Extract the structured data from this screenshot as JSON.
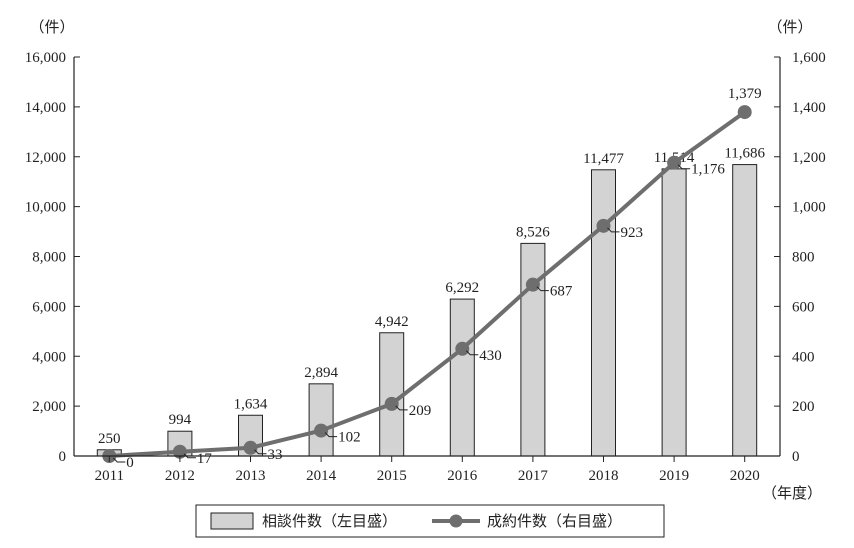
{
  "chart_data": {
    "type": "bar+line",
    "categories": [
      "2011",
      "2012",
      "2013",
      "2014",
      "2015",
      "2016",
      "2017",
      "2018",
      "2019",
      "2020"
    ],
    "series": [
      {
        "name": "相談件数（左目盛）",
        "type": "bar",
        "axis": "left",
        "values": [
          250,
          994,
          1634,
          2894,
          4942,
          6292,
          8526,
          11477,
          11514,
          11686
        ],
        "labels": [
          "250",
          "994",
          "1,634",
          "2,894",
          "4,942",
          "6,292",
          "8,526",
          "11,477",
          "11,514",
          "11,686"
        ],
        "color": "#d3d3d3"
      },
      {
        "name": "成約件数（右目盛）",
        "type": "line",
        "axis": "right",
        "values": [
          0,
          17,
          33,
          102,
          209,
          430,
          687,
          923,
          1176,
          1379
        ],
        "labels": [
          "0",
          "17",
          "33",
          "102",
          "209",
          "430",
          "687",
          "923",
          "1,176",
          "1,379"
        ],
        "color": "#6e6e6e"
      }
    ],
    "left_axis": {
      "unit": "（件）",
      "ylim": [
        0,
        16000
      ],
      "ticks": [
        "0",
        "2,000",
        "4,000",
        "6,000",
        "8,000",
        "10,000",
        "12,000",
        "14,000",
        "16,000"
      ]
    },
    "right_axis": {
      "unit": "（件）",
      "ylim": [
        0,
        1600
      ],
      "ticks": [
        "0",
        "200",
        "400",
        "600",
        "800",
        "1,000",
        "1,200",
        "1,400",
        "1,600"
      ]
    },
    "x_axis": {
      "unit": "（年度）"
    },
    "grid": false,
    "legend": {
      "placement": "bottom-center"
    }
  }
}
